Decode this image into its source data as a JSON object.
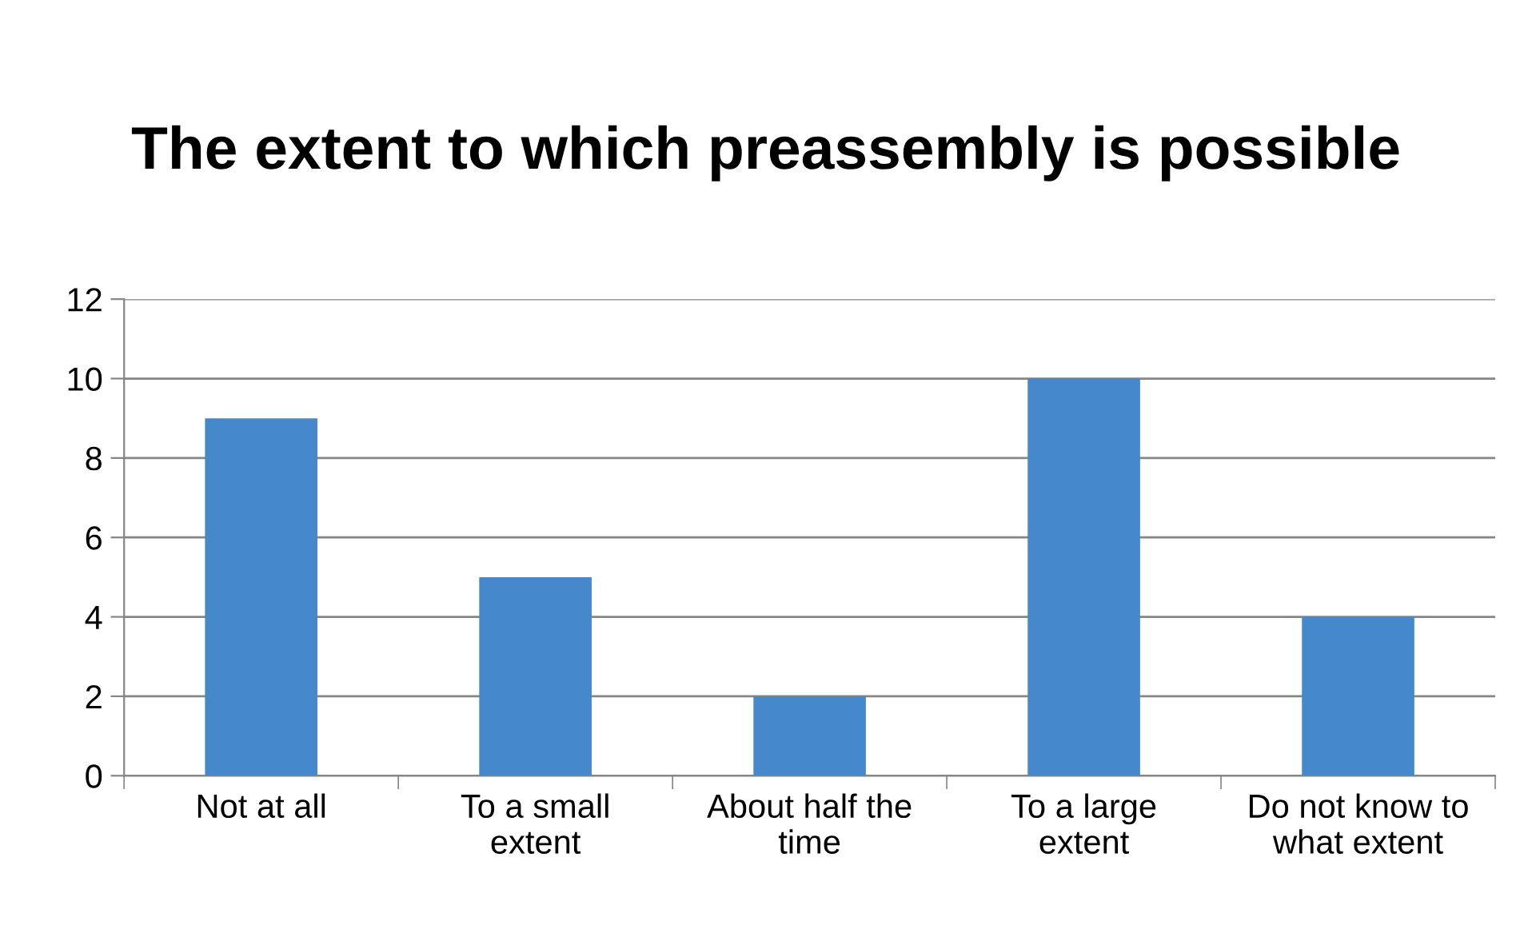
{
  "chart_data": {
    "type": "bar",
    "title": "The extent to which preassembly is possible",
    "categories": [
      "Not at all",
      "To a small\nextent",
      "About half the\ntime",
      "To a large\nextent",
      "Do not know to\nwhat extent"
    ],
    "values": [
      9,
      5,
      2,
      10,
      4
    ],
    "color": "#4688cc",
    "ylim": [
      0,
      12
    ],
    "yticks": [
      0,
      2,
      4,
      6,
      8,
      10,
      12
    ],
    "grid": "y",
    "legend": false
  }
}
